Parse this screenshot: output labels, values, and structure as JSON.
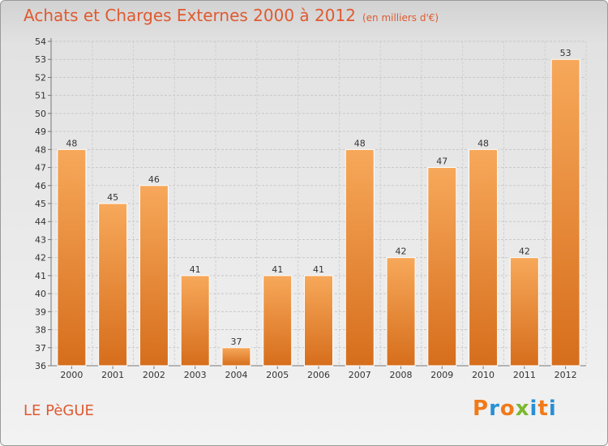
{
  "title": "Achats et Charges Externes 2000 à 2012",
  "unit": "(en milliers d'€)",
  "commune": "LE PèGUE",
  "logo": {
    "letters": [
      "P",
      "r",
      "o",
      "x",
      "i",
      "t",
      "i"
    ],
    "colors": [
      "#f07a1a",
      "#2a8fd4",
      "#f07a1a",
      "#7cb82f",
      "#2a8fd4",
      "#f07a1a",
      "#2a8fd4"
    ]
  },
  "colors": {
    "bar_top": "#f7a85a",
    "bar_bottom": "#d66e1c",
    "accent": "#e05a30"
  },
  "chart_data": {
    "type": "bar",
    "categories": [
      "2000",
      "2001",
      "2002",
      "2003",
      "2004",
      "2005",
      "2006",
      "2007",
      "2008",
      "2009",
      "2010",
      "2011",
      "2012"
    ],
    "values": [
      48,
      45,
      46,
      41,
      37,
      41,
      41,
      48,
      42,
      47,
      48,
      42,
      53
    ],
    "title": "Achats et Charges Externes 2000 à 2012",
    "ylim": [
      36,
      54
    ],
    "yticks": [
      36,
      37,
      38,
      39,
      40,
      41,
      42,
      43,
      44,
      45,
      46,
      47,
      48,
      49,
      50,
      51,
      52,
      53,
      54
    ],
    "grid": true,
    "legend": "none"
  }
}
